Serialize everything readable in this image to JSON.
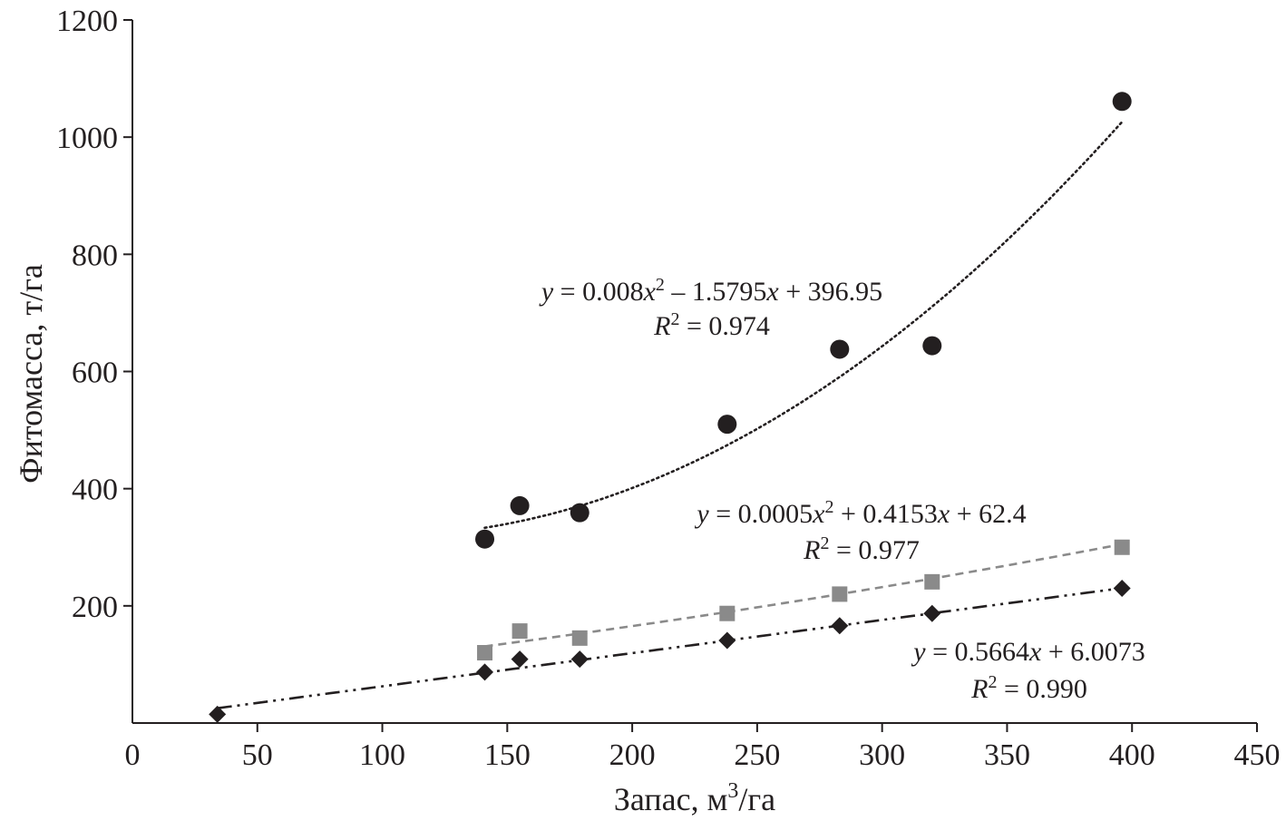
{
  "chart_data": {
    "type": "scatter",
    "xlabel": "Запас, м³/га",
    "xlabel_main": "Запас, м",
    "xlabel_sup": "3",
    "xlabel_tail": "/га",
    "ylabel": "Фитомасса, т/га",
    "xlim": [
      0,
      450
    ],
    "ylim": [
      0,
      1200
    ],
    "x_ticks": [
      0,
      50,
      100,
      150,
      200,
      250,
      300,
      350,
      400,
      450
    ],
    "y_ticks": [
      200,
      400,
      600,
      800,
      1000,
      1200
    ],
    "grid": false,
    "legend": "none",
    "series": [
      {
        "marker": "circle",
        "color": "#231f20",
        "points": [
          [
            141,
            314
          ],
          [
            155,
            371
          ],
          [
            179,
            359
          ],
          [
            238,
            510
          ],
          [
            283,
            638
          ],
          [
            320,
            644
          ],
          [
            396,
            1061
          ]
        ],
        "trend": {
          "kind": "poly2",
          "coef": [
            0.008,
            -1.5795,
            396.95
          ],
          "x_range": [
            141,
            396
          ],
          "style": "dotted",
          "color": "#231f20"
        },
        "equation": {
          "parts": [
            {
              "text": "y",
              "italic": true
            },
            {
              "text": " = 0.008"
            },
            {
              "text": "x",
              "italic": true
            },
            {
              "text": "2",
              "sup": true
            },
            {
              "text": " – 1.5795"
            },
            {
              "text": "x",
              "italic": true
            },
            {
              "text": " + 396.95"
            }
          ],
          "r2_letter": "R",
          "r2_sup": "2",
          "r2_value": " = 0.974"
        }
      },
      {
        "marker": "square",
        "color": "#8a8a8a",
        "points": [
          [
            141,
            120
          ],
          [
            155,
            157
          ],
          [
            179,
            145
          ],
          [
            238,
            187
          ],
          [
            283,
            220
          ],
          [
            320,
            241
          ],
          [
            396,
            300
          ]
        ],
        "trend": {
          "kind": "poly2",
          "coef": [
            0.0005,
            0.4153,
            62.4
          ],
          "x_range": [
            141,
            396
          ],
          "style": "dashed",
          "color": "#8a8a8a"
        },
        "equation": {
          "parts": [
            {
              "text": "y",
              "italic": true
            },
            {
              "text": " = 0.0005"
            },
            {
              "text": "x",
              "italic": true
            },
            {
              "text": "2",
              "sup": true
            },
            {
              "text": " + 0.4153"
            },
            {
              "text": "x",
              "italic": true
            },
            {
              "text": " + 62.4"
            }
          ],
          "r2_letter": "R",
          "r2_sup": "2",
          "r2_value": " = 0.977"
        }
      },
      {
        "marker": "diamond",
        "color": "#231f20",
        "points": [
          [
            34,
            15
          ],
          [
            141,
            87
          ],
          [
            155,
            109
          ],
          [
            179,
            109
          ],
          [
            238,
            141
          ],
          [
            283,
            166
          ],
          [
            320,
            187
          ],
          [
            396,
            230
          ]
        ],
        "trend": {
          "kind": "linear",
          "coef": [
            0.5664,
            6.0073
          ],
          "x_range": [
            34,
            396
          ],
          "style": "dashdotdot",
          "color": "#231f20"
        },
        "equation": {
          "parts": [
            {
              "text": "y",
              "italic": true
            },
            {
              "text": " = 0.5664"
            },
            {
              "text": "x",
              "italic": true
            },
            {
              "text": " + 6.0073"
            }
          ],
          "r2_letter": "R",
          "r2_sup": "2",
          "r2_value": " = 0.990"
        }
      }
    ]
  }
}
